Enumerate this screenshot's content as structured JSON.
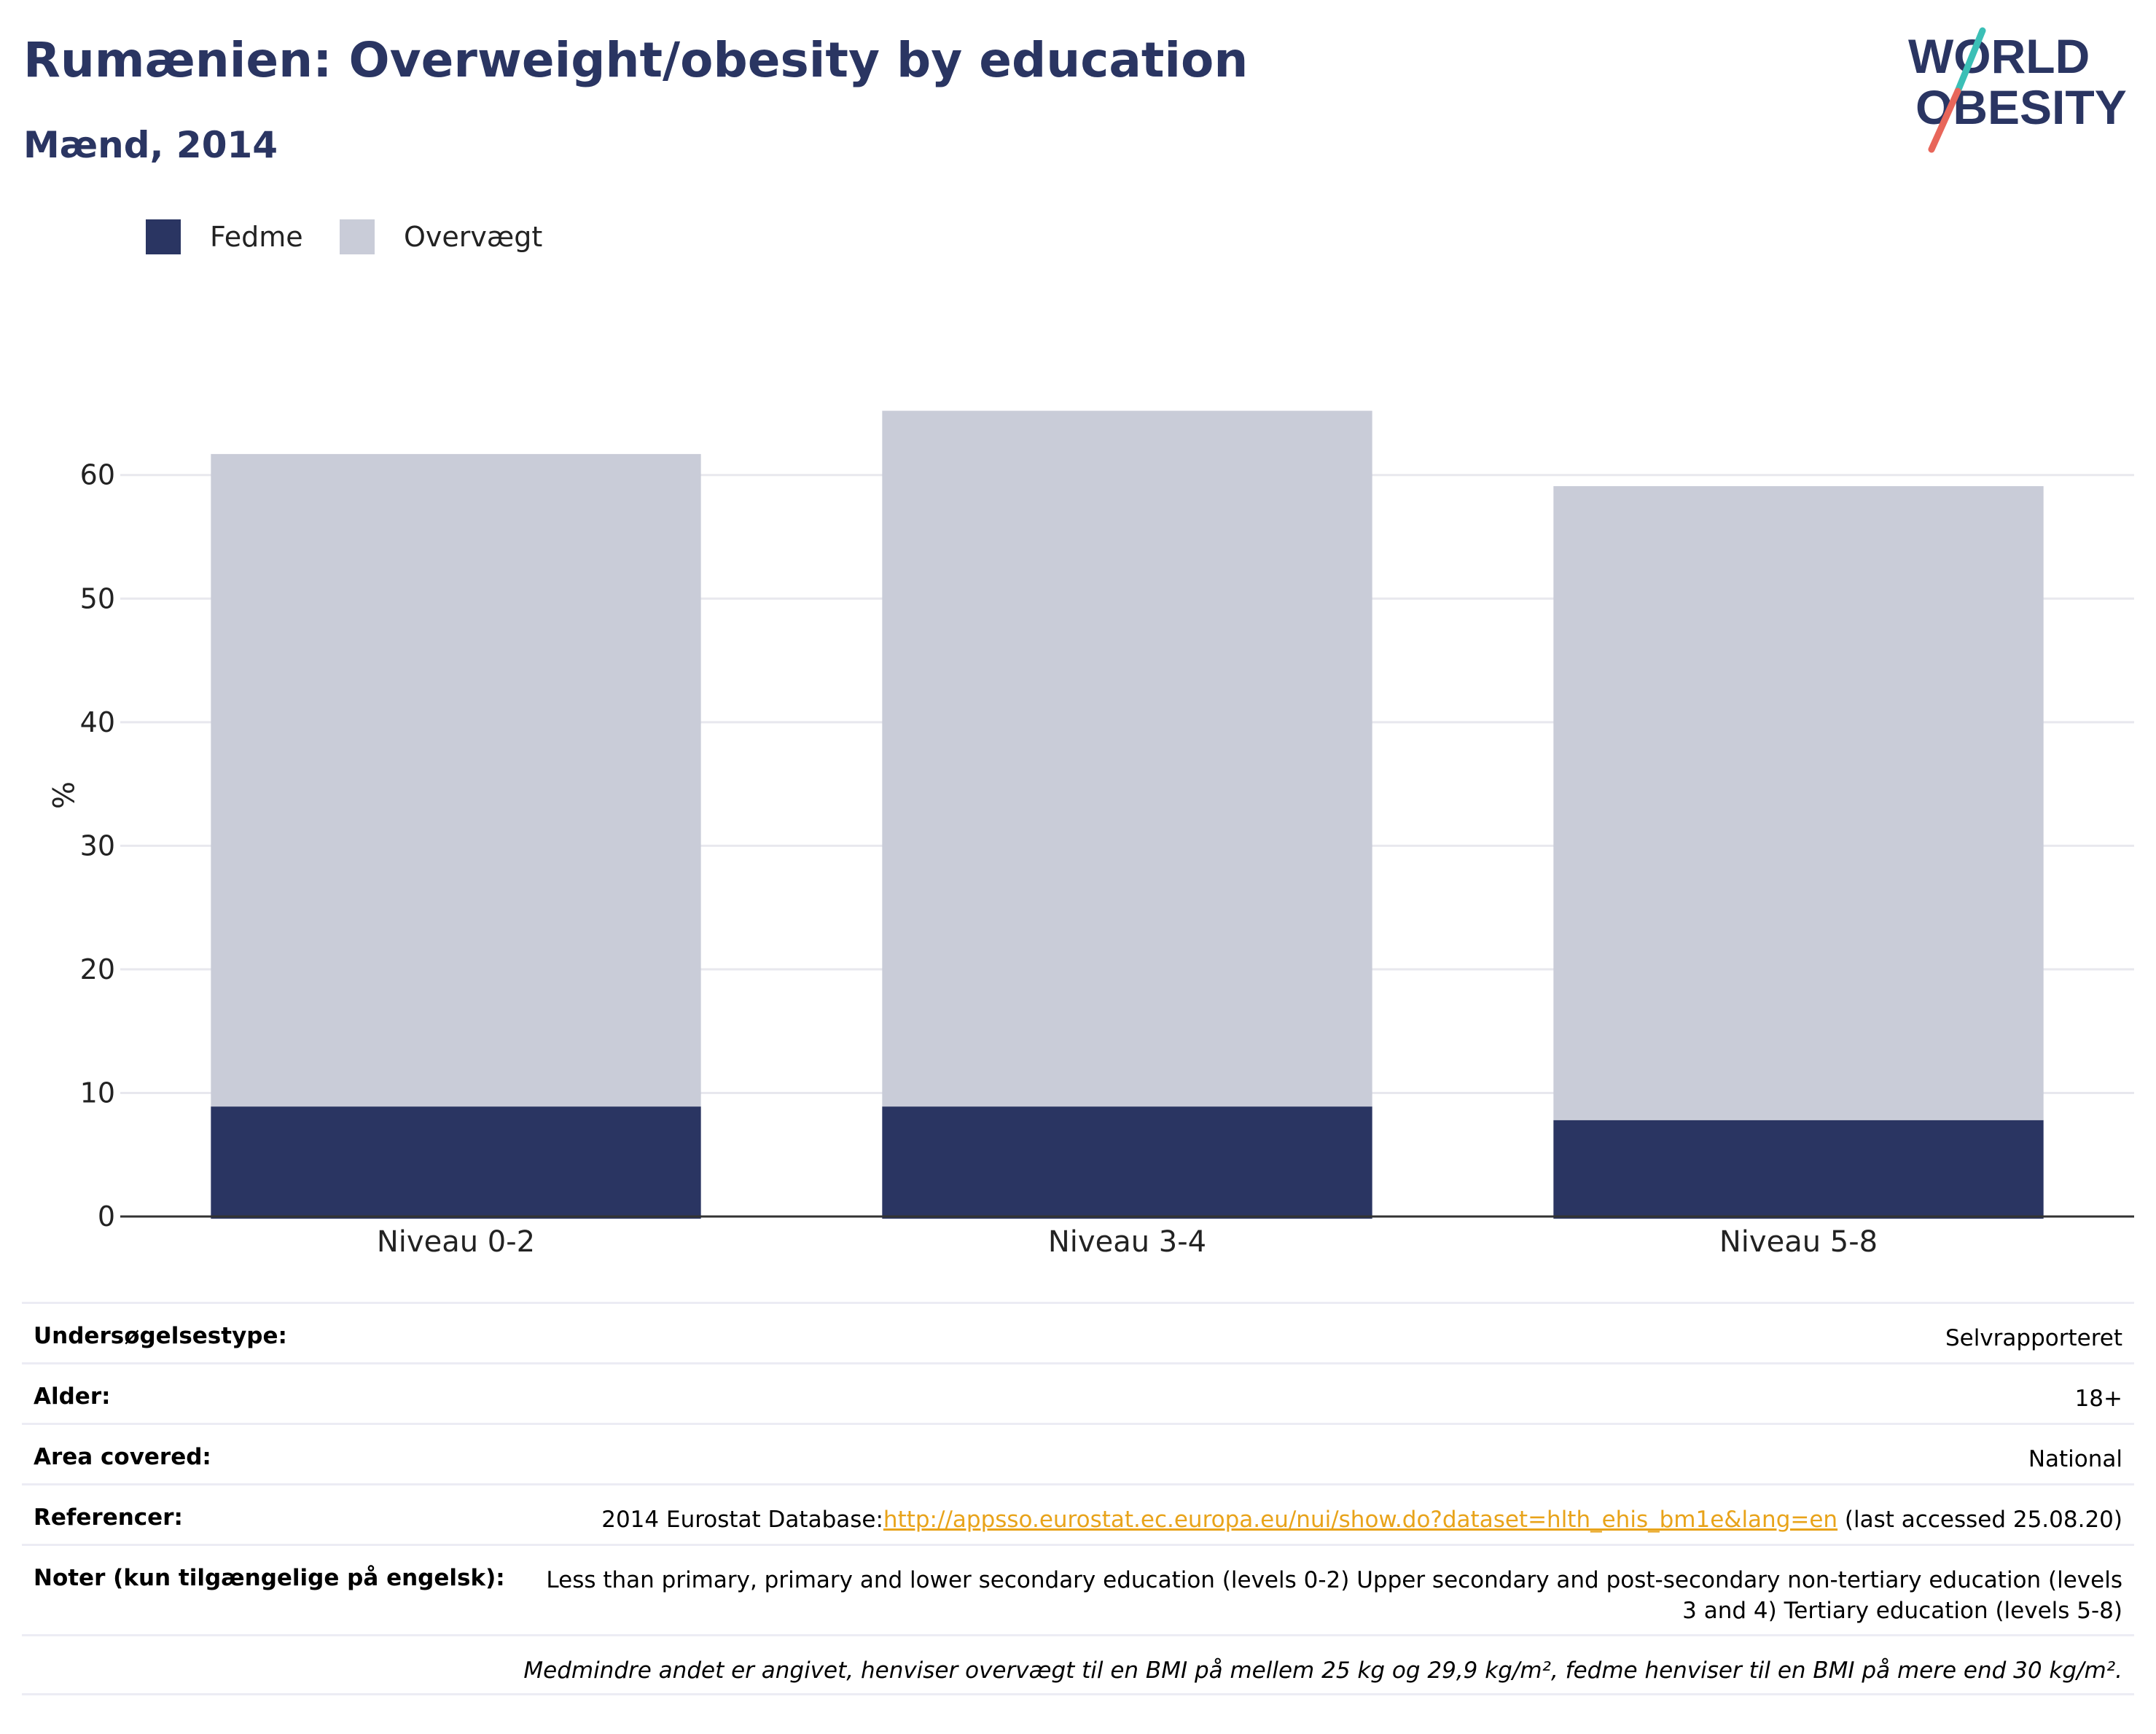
{
  "header": {
    "title": "Rumænien: Overweight/obesity by education",
    "subtitle": "Mænd, 2014"
  },
  "logo": {
    "line1": "WORLD",
    "line2": "OBESITY",
    "colors": {
      "text": "#2a3562",
      "slash_top": "#3bbfb6",
      "slash_bottom": "#e8665a"
    }
  },
  "colors": {
    "title": "#2a3562",
    "fedme": "#2a3562",
    "overvaegt": "#c9ccd8",
    "grid": "#e8e8ee",
    "axis": "#333333",
    "link": "#e8a31a"
  },
  "chart_data": {
    "type": "bar",
    "stacked": true,
    "categories": [
      "Niveau 0-2",
      "Niveau 3-4",
      "Niveau 5-8"
    ],
    "series": [
      {
        "name": "Fedme",
        "values": [
          8.9,
          8.9,
          7.8
        ]
      },
      {
        "name": "Overvægt",
        "values": [
          52.8,
          56.3,
          51.3
        ]
      }
    ],
    "ylabel": "%",
    "ylim": [
      0,
      66
    ],
    "yticks": [
      0,
      10,
      20,
      30,
      40,
      50,
      60
    ],
    "grid": true,
    "legend_position": "top-left"
  },
  "info": {
    "rows": [
      {
        "label": "Undersøgelsestype:",
        "value": "Selvrapporteret"
      },
      {
        "label": "Alder:",
        "value": "18+"
      },
      {
        "label": "Area covered:",
        "value": "National"
      }
    ],
    "references": {
      "label": "Referencer:",
      "prefix": "2014 Eurostat Database:",
      "link": "http://appsso.eurostat.ec.europa.eu/nui/show.do?dataset=hlth_ehis_bm1e&lang=en",
      "suffix": " (last accessed 25.08.20)"
    },
    "notes": {
      "label": "Noter (kun tilgængelige på engelsk):",
      "value": "Less than primary, primary and lower secondary education (levels 0-2) Upper secondary and post-secondary non-tertiary education (levels 3 and 4) Tertiary education (levels 5-8)"
    },
    "footnote": "Medmindre andet er angivet, henviser overvægt til en BMI på mellem 25 kg og 29,9 kg/m², fedme henviser til en BMI på mere end 30 kg/m²."
  }
}
